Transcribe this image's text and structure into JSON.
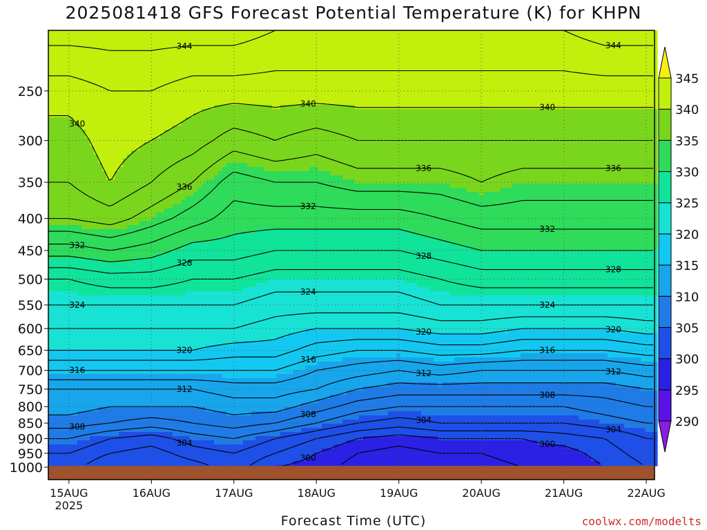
{
  "title": "2025081418 GFS Forecast Potential Temperature (K) for KHPN",
  "credit": "coolwx.com/modelts",
  "chart_data": {
    "type": "heatmap",
    "title": "2025081418 GFS Forecast Potential Temperature (K) for KHPN",
    "xlabel": "Forecast Time (UTC)",
    "ylabel": "",
    "x_ticks": [
      "15AUG",
      "16AUG",
      "17AUG",
      "18AUG",
      "19AUG",
      "20AUG",
      "21AUG",
      "22AUG"
    ],
    "x_subtick": "2025",
    "y_ticks": [
      250,
      300,
      350,
      400,
      450,
      500,
      550,
      600,
      650,
      700,
      750,
      800,
      850,
      900,
      950,
      1000
    ],
    "ylim": [
      1000,
      200
    ],
    "x_range_days": [
      -0.25,
      7.1
    ],
    "colorbar": {
      "levels": [
        290,
        295,
        300,
        305,
        310,
        315,
        320,
        325,
        330,
        335,
        340,
        345
      ],
      "labels": [
        "290",
        "295",
        "300",
        "305",
        "310",
        "315",
        "320",
        "325",
        "330",
        "335",
        "340",
        "345"
      ],
      "colors": [
        "#8a1fe0",
        "#5a12e8",
        "#2a20e6",
        "#1e4fe8",
        "#1f7ce6",
        "#17a6ec",
        "#13c8f0",
        "#18e2d4",
        "#10e39a",
        "#2fdb5a",
        "#7ad61c",
        "#c2ef0c",
        "#f6ef10"
      ]
    },
    "contour_interval": 2,
    "contour_label_values": [
      300,
      304,
      308,
      312,
      316,
      320,
      324,
      328,
      332,
      336,
      340,
      344
    ],
    "levels_hpa": [
      1000,
      950,
      900,
      850,
      800,
      750,
      700,
      650,
      600,
      550,
      500,
      450,
      400,
      350,
      300,
      250,
      200
    ],
    "times_days": [
      0,
      0.5,
      1,
      1.5,
      2,
      2.5,
      3,
      3.5,
      4,
      4.5,
      5,
      5.5,
      6,
      6.5,
      7
    ],
    "series": [
      {
        "time": 0,
        "values": [
          303,
          304,
          306,
          309,
          311,
          312,
          316,
          320,
          322,
          324,
          326,
          331,
          336,
          338,
          339,
          341,
          345
        ]
      },
      {
        "time": 0.5,
        "values": [
          300,
          302,
          304,
          308,
          310,
          312,
          316,
          320,
          322,
          324,
          327,
          332,
          337,
          340,
          341,
          342,
          345
        ]
      },
      {
        "time": 1,
        "values": [
          300,
          301,
          303,
          307,
          310,
          312,
          316,
          320,
          322,
          324,
          327,
          331,
          335,
          338,
          340,
          342,
          345
        ]
      },
      {
        "time": 1.5,
        "values": [
          301,
          303,
          305,
          308,
          310,
          312,
          316,
          320,
          322,
          324,
          326,
          329,
          333,
          336,
          339,
          341,
          345
        ]
      },
      {
        "time": 2,
        "values": [
          303,
          304,
          306,
          309,
          311,
          313,
          316,
          319,
          322,
          324,
          326,
          329,
          331,
          333,
          337,
          341,
          345
        ]
      },
      {
        "time": 2.5,
        "values": [
          300,
          302,
          304,
          308,
          311,
          313,
          316,
          319,
          321,
          323,
          325,
          328,
          331,
          334,
          338,
          341,
          344
        ]
      },
      {
        "time": 3,
        "values": [
          299,
          300,
          302,
          306,
          309,
          312,
          314,
          317,
          320,
          323,
          325,
          328,
          331,
          334,
          337,
          341,
          344
        ]
      },
      {
        "time": 3.5,
        "values": [
          297,
          298,
          300,
          304,
          307,
          310,
          313,
          316,
          320,
          323,
          325,
          328,
          331,
          335,
          338,
          341,
          344
        ]
      },
      {
        "time": 4,
        "values": [
          296,
          297,
          299,
          303,
          306,
          309,
          312,
          316,
          320,
          323,
          325,
          328,
          331,
          335,
          338,
          341,
          344
        ]
      },
      {
        "time": 4.5,
        "values": [
          297,
          298,
          300,
          304,
          306,
          309,
          313,
          317,
          321,
          324,
          326,
          329,
          332,
          335,
          338,
          341,
          344
        ]
      },
      {
        "time": 5,
        "values": [
          297,
          298,
          300,
          304,
          306,
          309,
          312,
          317,
          321,
          324,
          327,
          330,
          333,
          336,
          338,
          341,
          344
        ]
      },
      {
        "time": 5.5,
        "values": [
          298,
          299,
          300,
          304,
          306,
          309,
          312,
          316,
          320,
          324,
          327,
          330,
          333,
          335,
          338,
          341,
          344
        ]
      },
      {
        "time": 6,
        "values": [
          298,
          299,
          301,
          304,
          306,
          309,
          312,
          316,
          320,
          324,
          327,
          330,
          333,
          335,
          338,
          341,
          344
        ]
      },
      {
        "time": 6.5,
        "values": [
          300,
          301,
          302,
          305,
          307,
          309,
          312,
          316,
          320,
          324,
          327,
          330,
          333,
          335,
          338,
          341,
          345
        ]
      },
      {
        "time": 7,
        "values": [
          302,
          303,
          304,
          306,
          308,
          310,
          313,
          317,
          321,
          324,
          327,
          330,
          333,
          335,
          338,
          341,
          345
        ]
      }
    ]
  }
}
